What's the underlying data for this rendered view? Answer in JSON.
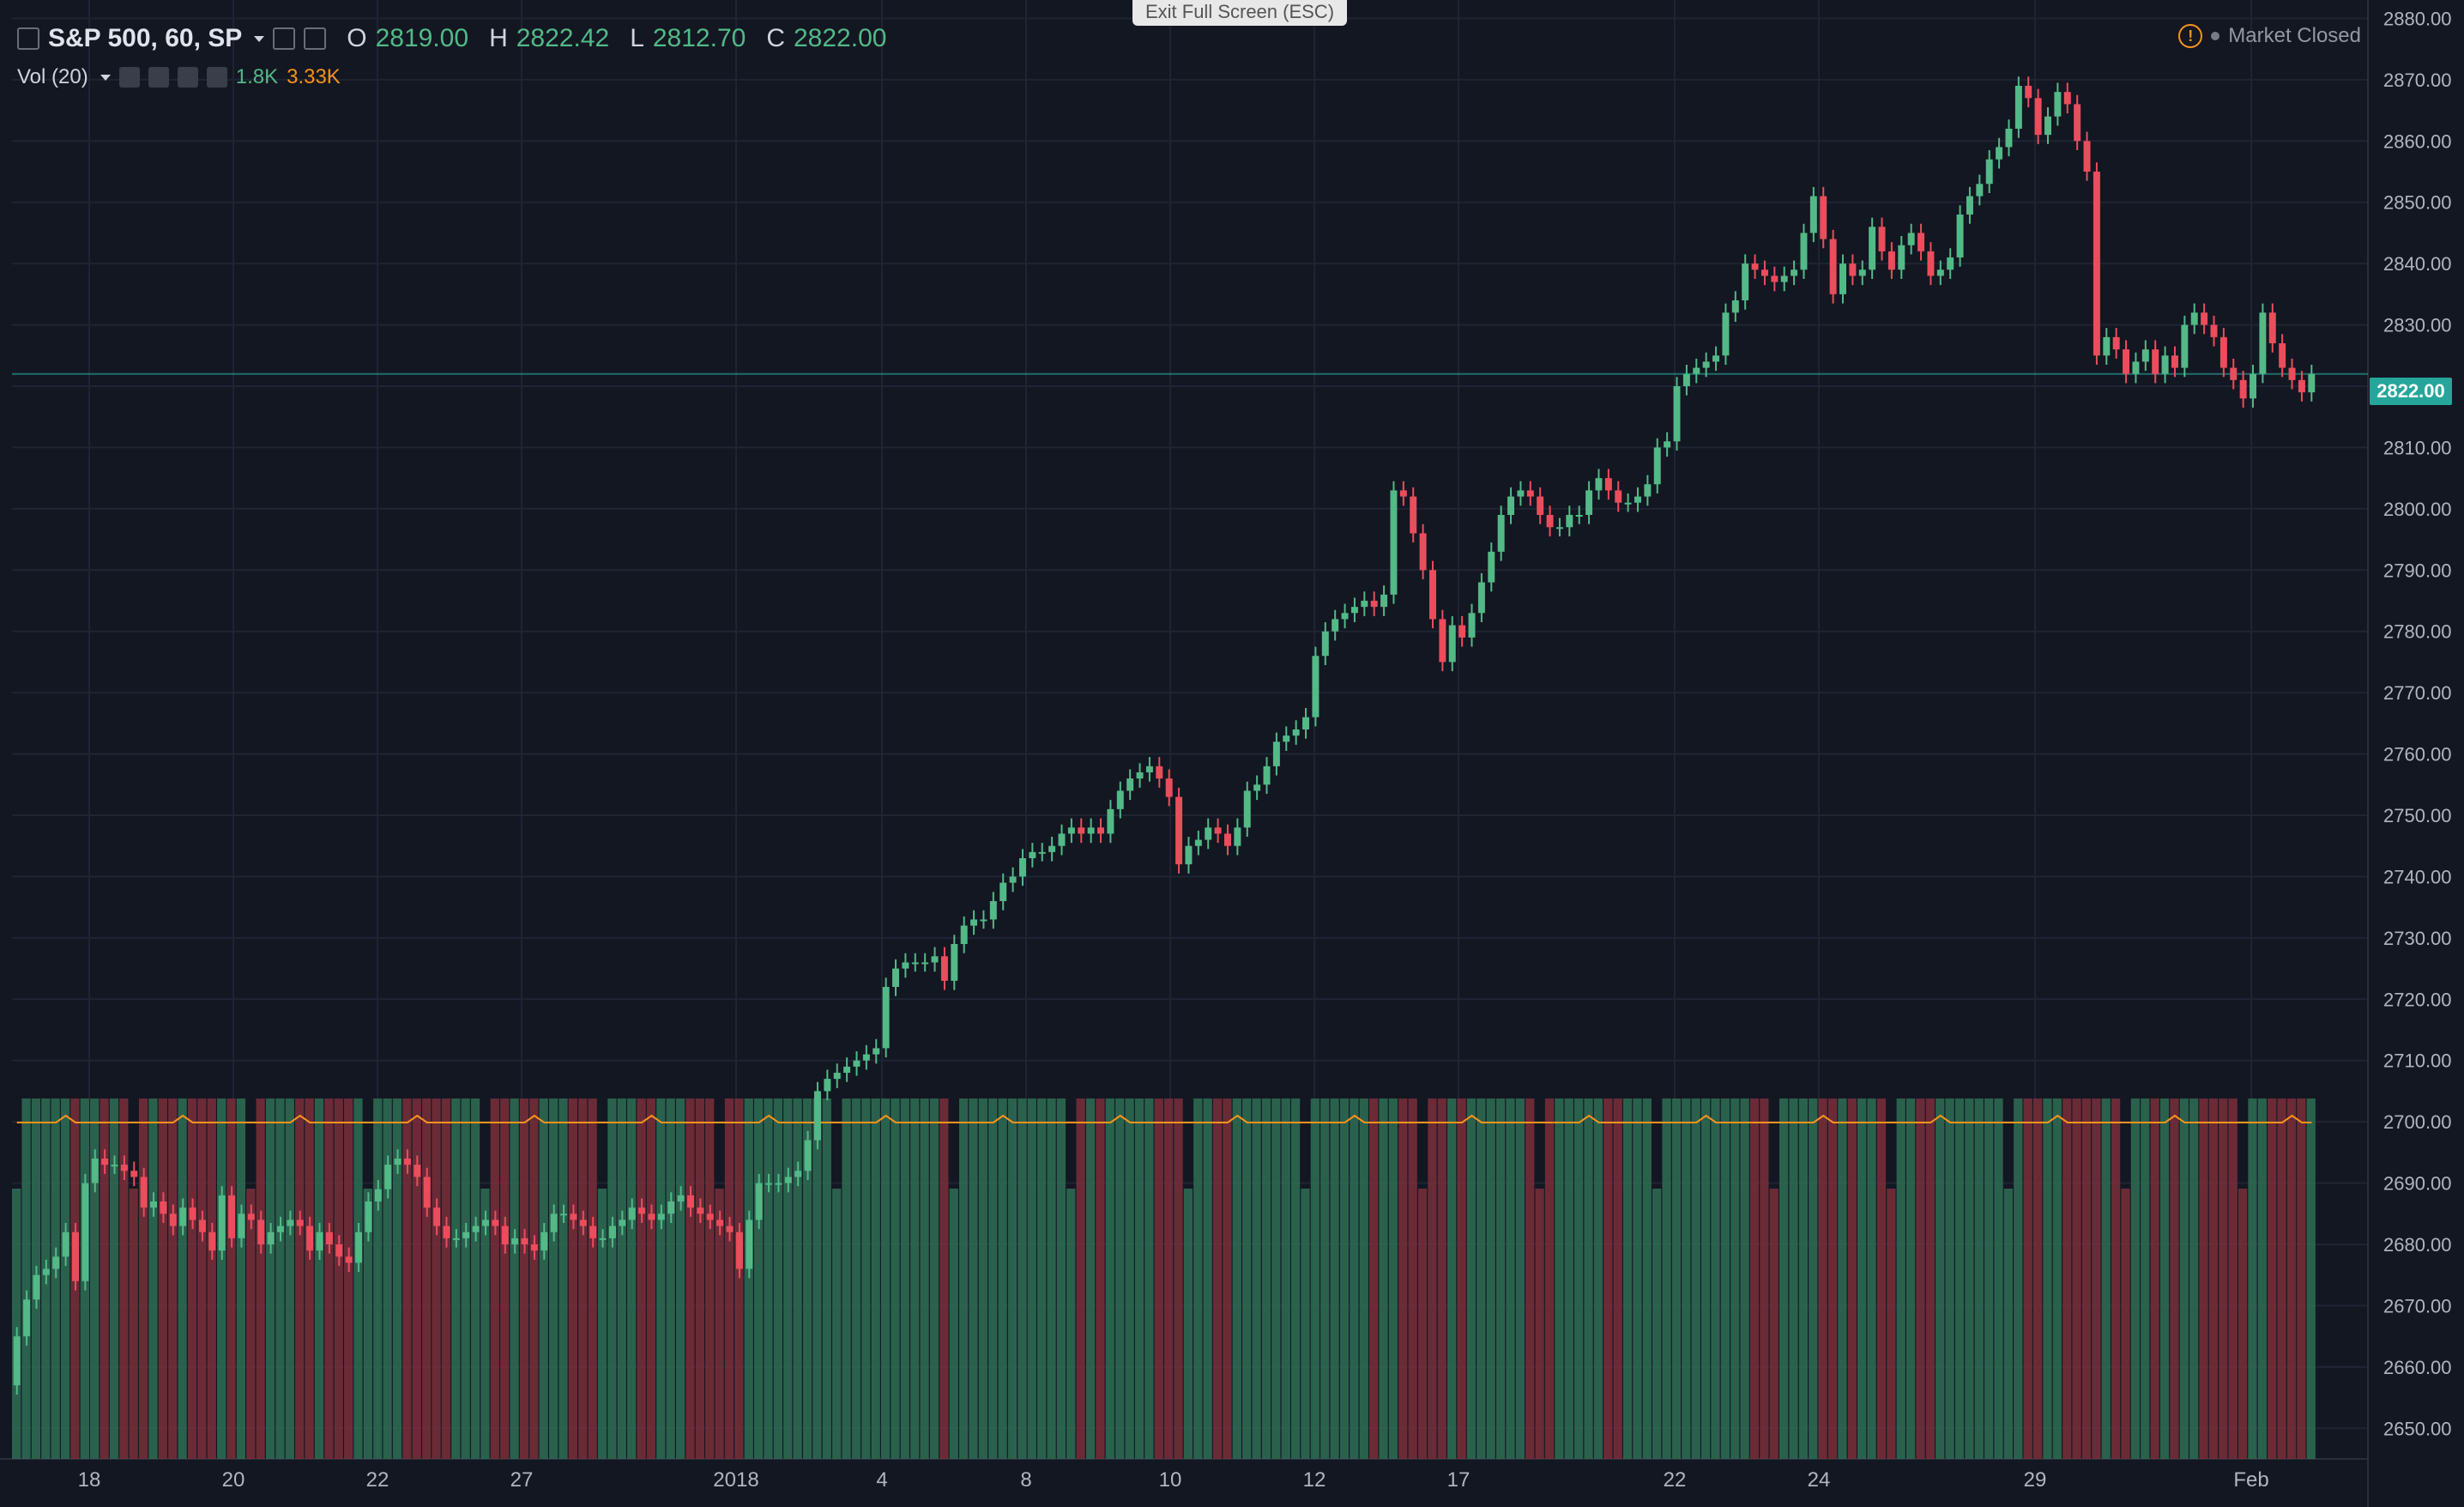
{
  "header": {
    "symbol": "S&P 500, 60, SP",
    "open_label": "O",
    "open": "2819.00",
    "high_label": "H",
    "high": "2822.42",
    "low_label": "L",
    "low": "2812.70",
    "close_label": "C",
    "close": "2822.00"
  },
  "volume": {
    "label": "Vol (20)",
    "value": "1.8K",
    "ma": "3.33K"
  },
  "banner": {
    "exit_fullscreen": "Exit Full Screen (ESC)"
  },
  "status": {
    "market": "Market Closed"
  },
  "price_axis": {
    "ticks": [
      "2880.00",
      "2870.00",
      "2860.00",
      "2850.00",
      "2840.00",
      "2830.00",
      "2820.00",
      "2810.00",
      "2800.00",
      "2790.00",
      "2780.00",
      "2770.00",
      "2760.00",
      "2750.00",
      "2740.00",
      "2730.00",
      "2720.00",
      "2710.00",
      "2700.00",
      "2690.00",
      "2680.00",
      "2670.00",
      "2660.00",
      "2650.00"
    ],
    "current": "2822.00"
  },
  "time_axis": {
    "ticks": [
      "18",
      "20",
      "22",
      "27",
      "2018",
      "4",
      "8",
      "10",
      "12",
      "17",
      "22",
      "24",
      "29",
      "Feb"
    ]
  },
  "colors": {
    "up": "#53b987",
    "down": "#eb4d5c",
    "background": "#131722",
    "grid": "#1f2433",
    "last_price": "#26a69a"
  },
  "chart_data": {
    "type": "candlestick",
    "x_ticks": [
      "18",
      "20",
      "22",
      "27",
      "2018",
      "4",
      "8",
      "10",
      "12",
      "17",
      "22",
      "24",
      "29",
      "Feb"
    ],
    "ylim": [
      2645,
      2883
    ],
    "closes": [
      2665,
      2671,
      2675,
      2676,
      2678,
      2682,
      2674,
      2690,
      2694,
      2693,
      2693,
      2692,
      2691,
      2686,
      2687,
      2685,
      2683,
      2686,
      2684,
      2682,
      2679,
      2688,
      2681,
      2685,
      2684,
      2680,
      2682,
      2683,
      2684,
      2683,
      2679,
      2682,
      2680,
      2678,
      2677,
      2682,
      2687,
      2689,
      2693,
      2694,
      2693,
      2691,
      2686,
      2683,
      2681,
      2681,
      2682,
      2683,
      2684,
      2683,
      2680,
      2681,
      2680,
      2679,
      2682,
      2685,
      2685,
      2684,
      2683,
      2681,
      2681,
      2683,
      2684,
      2686,
      2685,
      2684,
      2685,
      2687,
      2688,
      2686,
      2685,
      2684,
      2683,
      2682,
      2676,
      2684,
      2690,
      2690,
      2690,
      2691,
      2692,
      2697,
      2705,
      2707,
      2708,
      2709,
      2710,
      2711,
      2712,
      2722,
      2725,
      2726,
      2726,
      2726,
      2727,
      2723,
      2729,
      2732,
      2733,
      2733,
      2736,
      2739,
      2740,
      2743,
      2744,
      2744,
      2745,
      2747,
      2748,
      2747,
      2748,
      2747,
      2751,
      2754,
      2756,
      2757,
      2758,
      2756,
      2753,
      2742,
      2745,
      2746,
      2748,
      2747,
      2745,
      2748,
      2754,
      2755,
      2758,
      2762,
      2763,
      2764,
      2766,
      2776,
      2780,
      2782,
      2783,
      2784,
      2785,
      2784,
      2786,
      2803,
      2802,
      2796,
      2790,
      2782,
      2775,
      2781,
      2779,
      2783,
      2788,
      2793,
      2799,
      2802,
      2803,
      2802,
      2799,
      2797,
      2797,
      2799,
      2799,
      2803,
      2805,
      2803,
      2801,
      2801,
      2802,
      2804,
      2810,
      2811,
      2820,
      2822,
      2823,
      2824,
      2825,
      2832,
      2834,
      2840,
      2839,
      2838,
      2837,
      2838,
      2839,
      2845,
      2851,
      2844,
      2835,
      2840,
      2838,
      2839,
      2846,
      2842,
      2839,
      2843,
      2845,
      2842,
      2838,
      2839,
      2841,
      2848,
      2851,
      2853,
      2857,
      2859,
      2862,
      2869,
      2867,
      2861,
      2864,
      2868,
      2866,
      2860,
      2855,
      2825,
      2828,
      2826,
      2822,
      2824,
      2826,
      2822,
      2825,
      2823,
      2830,
      2832,
      2830,
      2828,
      2823,
      2821,
      2818,
      2822,
      2832,
      2827,
      2823,
      2821,
      2819,
      2822
    ],
    "volume_series": {
      "name": "Vol (20)",
      "last": "1.8K",
      "ma": "3.33K"
    },
    "last_price": 2822.0
  }
}
